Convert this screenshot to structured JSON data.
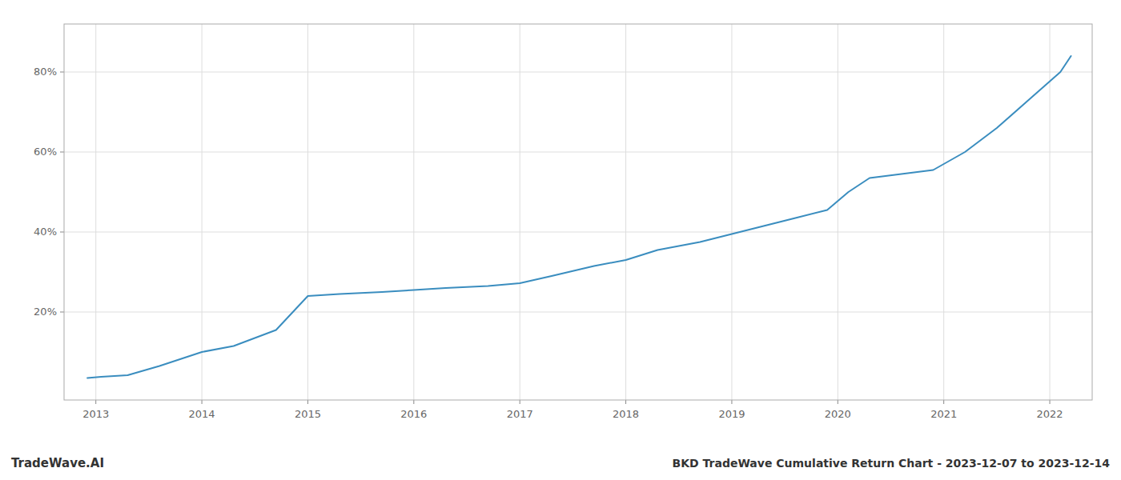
{
  "chart_data": {
    "type": "line",
    "title": "BKD TradeWave Cumulative Return Chart - 2023-12-07 to 2023-12-14",
    "annotations": [
      "TradeWave.AI"
    ],
    "x": [
      2012.92,
      2013.05,
      2013.3,
      2013.6,
      2014.0,
      2014.3,
      2014.7,
      2015.0,
      2015.3,
      2015.7,
      2016.0,
      2016.3,
      2016.7,
      2017.0,
      2017.3,
      2017.7,
      2018.0,
      2018.3,
      2018.7,
      2019.0,
      2019.3,
      2019.6,
      2019.9,
      2020.1,
      2020.3,
      2020.6,
      2020.9,
      2021.2,
      2021.5,
      2021.8,
      2022.1,
      2022.2
    ],
    "values": [
      0.035,
      0.038,
      0.042,
      0.065,
      0.1,
      0.115,
      0.155,
      0.24,
      0.245,
      0.25,
      0.255,
      0.26,
      0.265,
      0.272,
      0.29,
      0.315,
      0.33,
      0.355,
      0.375,
      0.395,
      0.415,
      0.435,
      0.455,
      0.5,
      0.535,
      0.545,
      0.555,
      0.6,
      0.66,
      0.73,
      0.8,
      0.84
    ],
    "color": "#3a8dbf",
    "xlim": [
      2012.7,
      2022.4
    ],
    "ylim": [
      -0.02,
      0.92
    ],
    "xticks": [
      2013,
      2014,
      2015,
      2016,
      2017,
      2018,
      2019,
      2020,
      2021,
      2022
    ],
    "yticks": [
      {
        "value": 0.2,
        "label": "20%"
      },
      {
        "value": 0.4,
        "label": "40%"
      },
      {
        "value": 0.6,
        "label": "60%"
      },
      {
        "value": 0.8,
        "label": "80%"
      }
    ],
    "grid": true
  }
}
